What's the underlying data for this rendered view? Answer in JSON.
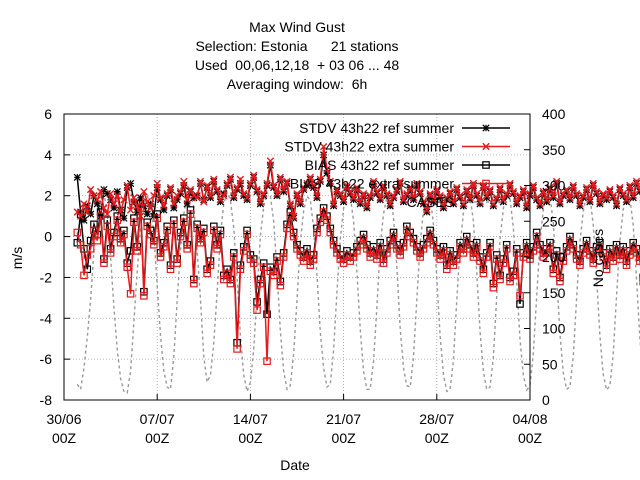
{
  "chart_data": {
    "type": "line",
    "title_lines": [
      "Max Wind Gust",
      "Selection: Estonia      21 stations",
      "Used  00,06,12,18  + 03 06 ... 48",
      "Averaging window:  6h"
    ],
    "xlabel": "Date",
    "ylabel": "m/s",
    "y2label": "No cases",
    "ylim": [
      -8,
      6
    ],
    "y2lim": [
      0,
      400
    ],
    "yticks": [
      "6",
      "4",
      "2",
      "0",
      "-2",
      "-4",
      "-6",
      "-8"
    ],
    "y2ticks": [
      "400",
      "350",
      "300",
      "250",
      "200",
      "150",
      "100",
      "50",
      "0"
    ],
    "xticks": [
      {
        "day": 0,
        "line1": "30/06",
        "line2": "00Z"
      },
      {
        "day": 7,
        "line1": "07/07",
        "line2": "00Z"
      },
      {
        "day": 14,
        "line1": "14/07",
        "line2": "00Z"
      },
      {
        "day": 21,
        "line1": "21/07",
        "line2": "00Z"
      },
      {
        "day": 28,
        "line1": "28/07",
        "line2": "00Z"
      },
      {
        "day": 35,
        "line1": "04/08",
        "line2": "00Z"
      }
    ],
    "xlim_days": [
      0,
      35
    ],
    "grid": true,
    "legend_placement": "top-right",
    "legend": [
      {
        "label": "STDV 43h22 ref summer",
        "color": "#000000",
        "marker": "star",
        "key": "stdv_ref"
      },
      {
        "label": "STDV 43h22 extra summer",
        "color": "#e41a1c",
        "marker": "cross",
        "key": "stdv_extra"
      },
      {
        "label": "BIAS 43h22 ref summer",
        "color": "#000000",
        "marker": "square",
        "key": "bias_ref"
      },
      {
        "label": "BIAS 43h22 extra summer",
        "color": "#e41a1c",
        "marker": "square",
        "key": "bias_extra"
      },
      {
        "label": "CASES",
        "color": "#999999",
        "marker": "none",
        "key": "cases"
      }
    ],
    "x_start_day": 1.0,
    "x_step_days": 0.25,
    "series": {
      "stdv_ref": [
        2.9,
        1.2,
        0.8,
        1.5,
        1.1,
        2.0,
        1.6,
        1.0,
        2.3,
        2.1,
        1.8,
        1.4,
        2.2,
        1.3,
        0.9,
        2.4,
        2.6,
        1.7,
        1.2,
        1.9,
        1.5,
        1.1,
        1.6,
        1.0,
        2.4,
        1.8,
        1.3,
        2.0,
        2.3,
        1.4,
        1.8,
        2.1,
        2.5,
        1.6,
        2.2,
        1.9,
        2.0,
        2.6,
        1.8,
        2.4,
        1.9,
        2.7,
        2.2,
        1.7,
        2.1,
        2.5,
        2.8,
        1.9,
        2.3,
        2.6,
        2.0,
        1.8,
        2.5,
        2.9,
        2.2,
        1.6,
        2.0,
        2.5,
        3.5,
        2.4,
        2.0,
        2.8,
        2.2,
        2.6,
        1.5,
        0.9,
        2.0,
        1.6,
        2.3,
        2.5,
        2.8,
        2.4,
        1.9,
        2.7,
        4.0,
        3.1,
        2.6,
        1.5,
        2.2,
        2.0,
        1.7,
        2.4,
        2.1,
        1.8,
        2.3,
        1.6,
        2.0,
        1.4,
        1.9,
        2.6,
        2.1,
        1.8,
        2.4,
        2.0,
        1.5,
        1.9,
        2.2,
        2.6,
        1.7,
        2.0,
        2.3,
        1.8,
        2.5,
        2.1,
        1.6,
        1.2,
        2.0,
        1.7,
        2.2,
        1.9,
        1.4,
        1.8,
        2.1,
        1.6,
        2.3,
        1.9,
        1.5,
        2.2,
        1.8,
        2.5,
        2.0,
        1.6,
        2.4,
        1.9,
        2.2,
        1.5,
        1.8,
        2.3,
        1.7,
        2.0,
        2.5,
        2.1,
        1.6,
        1.9,
        2.2,
        1.4,
        2.0,
        2.4,
        1.8,
        1.5,
        2.1,
        1.7,
        2.3,
        1.9,
        2.6,
        1.6,
        2.0,
        2.2,
        1.8,
        2.4,
        2.0,
        1.5,
        1.9,
        2.3,
        1.7,
        2.5,
        2.1,
        1.6,
        2.0,
        1.8,
        2.2,
        1.9,
        1.5,
        2.3,
        2.0,
        1.7,
        2.4,
        1.9,
        2.6,
        2.2,
        1.8,
        2.1,
        1.6,
        2.0,
        1.7,
        2.3,
        2.5,
        3.8,
        2.9,
        2.2,
        1.8,
        2.4,
        2.0,
        1.6,
        2.2
      ],
      "stdv_extra": [
        1.2,
        1.0,
        1.6,
        1.2,
        2.3,
        2.0,
        1.8,
        2.2,
        1.4,
        1.1,
        2.1,
        1.6,
        2.0,
        1.2,
        1.8,
        2.5,
        1.3,
        1.9,
        1.5,
        1.0,
        2.2,
        1.7,
        1.4,
        2.0,
        2.6,
        1.9,
        1.5,
        2.1,
        2.4,
        1.6,
        2.0,
        2.2,
        2.7,
        1.8,
        2.3,
        2.0,
        1.9,
        2.7,
        1.7,
        2.5,
        2.0,
        2.8,
        2.3,
        1.8,
        2.0,
        2.6,
        2.9,
        2.0,
        2.4,
        2.8,
        2.1,
        1.9,
        2.6,
        3.0,
        2.3,
        1.7,
        2.1,
        2.6,
        3.7,
        2.5,
        2.1,
        2.9,
        2.3,
        2.7,
        1.6,
        1.0,
        2.1,
        1.7,
        2.4,
        2.6,
        2.9,
        2.5,
        2.0,
        2.8,
        4.4,
        3.3,
        2.7,
        1.6,
        2.3,
        2.1,
        1.8,
        2.5,
        2.2,
        1.9,
        2.4,
        1.7,
        2.1,
        1.5,
        2.0,
        2.7,
        2.2,
        1.9,
        2.5,
        2.1,
        1.6,
        2.0,
        2.3,
        2.7,
        1.8,
        2.1,
        2.4,
        1.9,
        2.6,
        2.2,
        1.7,
        1.3,
        2.1,
        1.8,
        2.3,
        2.0,
        1.5,
        1.9,
        2.2,
        1.7,
        2.4,
        2.0,
        1.6,
        2.3,
        1.9,
        2.6,
        2.1,
        1.7,
        2.5,
        2.0,
        2.3,
        1.6,
        1.9,
        2.4,
        1.8,
        2.1,
        2.6,
        2.2,
        1.7,
        2.0,
        2.3,
        1.5,
        2.1,
        2.5,
        1.9,
        1.6,
        2.2,
        1.8,
        2.4,
        2.0,
        2.7,
        1.7,
        2.1,
        2.3,
        1.9,
        2.5,
        2.1,
        1.6,
        2.0,
        2.4,
        1.8,
        2.6,
        2.2,
        1.7,
        2.1,
        1.9,
        2.3,
        2.0,
        1.6,
        2.4,
        2.1,
        1.8,
        2.5,
        2.0,
        2.7,
        2.3,
        1.9,
        2.2,
        1.7,
        2.1,
        1.8,
        2.4,
        2.6,
        3.6,
        2.8,
        2.1,
        1.7,
        2.3,
        1.9,
        1.5,
        2.1
      ],
      "bias_ref": [
        -0.3,
        1.1,
        -0.6,
        -1.6,
        -0.2,
        0.6,
        0.1,
        1.2,
        -1.1,
        0.8,
        -0.6,
        0.2,
        1.0,
        -0.1,
        0.3,
        -1.3,
        -0.7,
        0.9,
        -0.5,
        1.6,
        -2.7,
        0.7,
        0.3,
        -0.2,
        1.1,
        -0.8,
        -0.3,
        0.5,
        -1.4,
        0.8,
        -1.1,
        0.2,
        0.9,
        -0.4,
        1.3,
        -2.1,
        0.6,
        -0.1,
        0.4,
        -1.6,
        -1.2,
        0.5,
        -0.4,
        0.3,
        -1.9,
        -1.6,
        -2.1,
        -0.8,
        -5.2,
        -1.4,
        -0.5,
        0.3,
        -0.9,
        -1.1,
        -3.2,
        -2.1,
        -1.3,
        -3.8,
        -1.5,
        -1.7,
        -1.0,
        -2.2,
        -0.8,
        0.6,
        1.2,
        0.2,
        -0.4,
        -0.7,
        -1.0,
        -0.6,
        -1.2,
        -0.9,
        0.4,
        0.9,
        1.4,
        1.0,
        0.4,
        -0.2,
        -0.6,
        -0.9,
        -1.1,
        -0.7,
        -1.0,
        -0.8,
        -0.5,
        -0.2,
        0.1,
        -0.4,
        -0.8,
        -0.5,
        -0.9,
        -0.3,
        -1.1,
        -0.6,
        -0.2,
        0.2,
        -0.4,
        -0.7,
        -0.3,
        0.5,
        0.2,
        -0.1,
        -0.5,
        -0.8,
        -0.4,
        -0.1,
        0.3,
        -0.2,
        -0.6,
        -0.9,
        -0.5,
        -1.4,
        -0.7,
        -1.2,
        -0.9,
        -0.3,
        -0.6,
        0.0,
        -0.4,
        -0.8,
        -0.3,
        -1.0,
        -1.6,
        -0.8,
        -0.3,
        -2.3,
        -0.9,
        -1.9,
        -1.1,
        -0.4,
        -2.0,
        -1.7,
        -0.6,
        -3.3,
        -0.8,
        -0.3,
        -0.9,
        -0.5,
        0.2,
        -0.4,
        -0.8,
        -0.6,
        -0.3,
        -1.6,
        -0.7,
        -2.0,
        -1.0,
        -0.5,
        0.0,
        -0.4,
        -0.9,
        -1.2,
        -0.6,
        -0.2,
        -0.7,
        -1.1,
        -0.5,
        -0.3,
        -0.8,
        -1.4,
        -0.6,
        -1.0,
        -0.4,
        -0.9,
        -0.5,
        -1.2,
        -0.7,
        -0.3,
        -0.6,
        -1.0,
        -2.0,
        -1.2,
        -0.6,
        -0.9,
        -1.3,
        -0.5,
        -0.8,
        -1.6,
        -0.7,
        -4.3,
        -3.1,
        -1.8
      ],
      "bias_extra": [
        0.2,
        -0.4,
        -1.9,
        -0.9,
        -0.6,
        0.3,
        -0.2,
        1.0,
        -1.3,
        0.5,
        -0.8,
        0.0,
        0.8,
        -0.3,
        0.1,
        -1.5,
        -2.8,
        0.7,
        -0.7,
        1.4,
        -2.9,
        0.5,
        0.1,
        -0.4,
        0.9,
        -1.0,
        -0.5,
        0.3,
        -1.6,
        0.6,
        -1.3,
        0.0,
        0.7,
        -0.6,
        1.1,
        -2.3,
        0.4,
        -0.3,
        0.2,
        -1.8,
        -1.4,
        0.3,
        -0.6,
        0.1,
        -2.1,
        -1.8,
        -2.3,
        -1.0,
        -5.5,
        -1.6,
        -0.7,
        0.1,
        -1.1,
        -1.3,
        -3.6,
        -2.3,
        -1.5,
        -6.1,
        -1.7,
        -1.9,
        -1.2,
        -2.4,
        -1.0,
        0.4,
        1.0,
        0.0,
        -0.6,
        -0.9,
        -1.2,
        -0.8,
        -1.4,
        -1.1,
        0.2,
        0.7,
        1.2,
        0.8,
        0.2,
        -0.4,
        -0.8,
        -1.1,
        -1.3,
        -0.9,
        -1.2,
        -1.0,
        -0.7,
        -0.4,
        -0.1,
        -0.6,
        -1.0,
        -0.7,
        -1.1,
        -0.5,
        -1.3,
        -0.8,
        -0.4,
        0.0,
        -0.6,
        -0.9,
        -0.5,
        0.3,
        0.0,
        -0.3,
        -0.7,
        -1.0,
        -0.6,
        -0.3,
        0.1,
        -0.4,
        -0.8,
        -1.1,
        -0.7,
        -1.6,
        -0.9,
        -1.4,
        -1.1,
        -0.5,
        -0.8,
        -0.2,
        -0.6,
        -1.0,
        -0.5,
        -1.2,
        -1.8,
        -1.0,
        -0.5,
        -2.5,
        -1.1,
        -2.1,
        -1.3,
        -0.6,
        -2.2,
        -1.9,
        -0.8,
        -2.9,
        -1.0,
        -0.5,
        -1.1,
        -0.7,
        0.0,
        -0.6,
        -1.0,
        -0.8,
        -0.5,
        -1.8,
        -0.9,
        -2.2,
        -1.2,
        -0.7,
        -0.2,
        -0.6,
        -1.1,
        -1.4,
        -0.8,
        -0.4,
        -0.9,
        -1.3,
        -0.7,
        -0.5,
        -1.0,
        -1.6,
        -0.8,
        -1.2,
        -0.6,
        -1.1,
        -0.7,
        -1.4,
        -0.9,
        -0.5,
        -0.8,
        -1.2,
        -2.2,
        -1.4,
        -0.8,
        -1.1,
        -1.5,
        -0.7,
        -1.0,
        -1.8,
        -0.9,
        -4.6,
        -3.3,
        -2.0
      ],
      "cases": [
        22,
        15,
        45,
        88,
        140,
        210,
        250,
        280,
        290,
        260,
        200,
        130,
        70,
        30,
        12,
        10,
        40,
        110,
        180,
        240,
        270,
        285,
        275,
        230,
        160,
        90,
        40,
        18,
        15,
        60,
        140,
        210,
        260,
        285,
        290,
        270,
        210,
        140,
        60,
        25,
        35,
        80,
        150,
        230,
        275,
        290,
        280,
        240,
        170,
        90,
        35,
        12,
        25,
        70,
        150,
        230,
        270,
        290,
        285,
        250,
        180,
        95,
        40,
        15,
        20,
        65,
        140,
        220,
        265,
        285,
        280,
        240,
        175,
        95,
        45,
        18,
        22,
        70,
        150,
        225,
        268,
        290,
        285,
        250,
        180,
        100,
        40,
        15,
        15,
        55,
        130,
        215,
        260,
        285,
        290,
        255,
        185,
        100,
        45,
        20,
        18,
        60,
        140,
        220,
        265,
        288,
        285,
        245,
        170,
        90,
        35,
        12,
        15,
        55,
        140,
        215,
        262,
        288,
        285,
        250,
        180,
        95,
        40,
        15,
        18,
        60,
        145,
        225,
        268,
        290,
        282,
        240,
        165,
        85,
        35,
        14,
        20,
        65,
        145,
        222,
        266,
        288,
        285,
        248,
        175,
        92,
        38,
        15,
        18,
        62,
        142,
        220,
        264,
        287,
        284,
        246,
        172,
        90,
        36,
        14,
        20,
        64,
        144,
        222,
        266,
        289,
        282,
        245,
        170,
        88,
        34,
        12,
        12,
        35
      ]
    }
  }
}
